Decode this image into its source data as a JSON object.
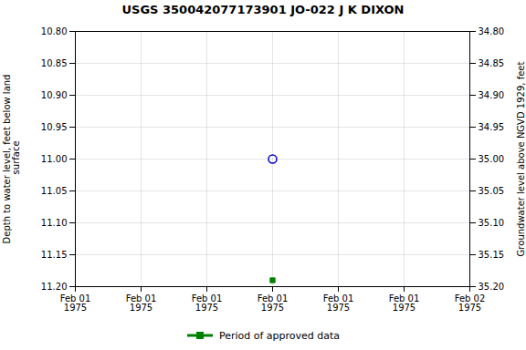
{
  "chart_data": {
    "type": "scatter",
    "title": "USGS 350042077173901 JO-022 J K DIXON",
    "ylabel": "Depth to water level, feet below land\n surface",
    "y2label": "Groundwater level above NGVD 1929, feet",
    "categories": [
      "Feb 01\n1975",
      "Feb 01\n1975",
      "Feb 01\n1975",
      "Feb 01\n1975",
      "Feb 01\n1975",
      "Feb 01\n1975",
      "Feb 02\n1975"
    ],
    "series": [
      {
        "color": "#0000cc",
        "marker": "open_circle",
        "values": [
          null,
          null,
          null,
          11.0,
          null,
          null,
          null
        ]
      },
      {
        "name": "Period of approved data",
        "color": "#008000",
        "marker": "square",
        "values": [
          null,
          null,
          null,
          11.19,
          null,
          null,
          null
        ]
      }
    ],
    "ylim": [
      11.2,
      10.8
    ],
    "yticks": [
      {
        "value": 10.8,
        "label": "10.80"
      },
      10.85,
      {
        "value": 10.9,
        "label": "10.90"
      },
      10.95,
      {
        "value": 11.0,
        "label": "11.00"
      },
      11.05,
      {
        "value": 11.1,
        "label": "11.10"
      },
      11.15,
      {
        "value": 11.2,
        "label": "11.20"
      }
    ],
    "y2lim": [
      35.2,
      34.8
    ],
    "y2ticks": [
      {
        "value": 35.2,
        "label": "35.20"
      },
      35.15,
      {
        "value": 35.1,
        "label": "35.10"
      },
      35.05,
      {
        "value": 35.0,
        "label": "35.00"
      },
      34.95,
      {
        "value": 34.9,
        "label": "34.90"
      },
      34.85,
      {
        "value": 34.8,
        "label": "34.80"
      }
    ],
    "grid": true,
    "legend": "bottom"
  }
}
